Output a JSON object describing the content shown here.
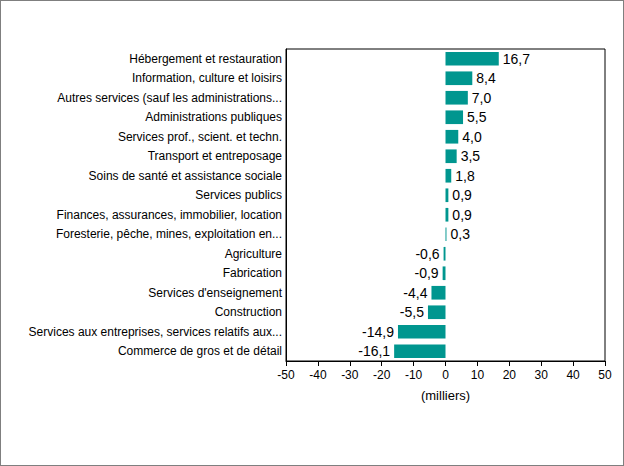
{
  "chart_data": {
    "type": "bar",
    "orientation": "horizontal",
    "x_label": "(milliers)",
    "categories": [
      "Hébergement et restauration",
      "Information, culture et loisirs",
      "Autres services (sauf les administrations...",
      "Administrations publiques",
      "Services prof., scient. et techn.",
      "Transport et entreposage",
      "Soins de santé et assistance sociale",
      "Services publics",
      "Finances, assurances, immobilier, location",
      "Foresterie, pêche, mines, exploitation en...",
      "Agriculture",
      "Fabrication",
      "Services d'enseignement",
      "Construction",
      "Services aux entreprises, services relatifs aux...",
      "Commerce de gros et de détail"
    ],
    "values": [
      16.7,
      8.4,
      7.0,
      5.5,
      4.0,
      3.5,
      1.8,
      0.9,
      0.9,
      0.3,
      -0.6,
      -0.9,
      -4.4,
      -5.5,
      -14.9,
      -16.1
    ],
    "value_labels": [
      "16,7",
      "8,4",
      "7,0",
      "5,5",
      "4,0",
      "3,5",
      "1,8",
      "0,9",
      "0,9",
      "0,3",
      "-0,6",
      "-0,9",
      "-4,4",
      "-5,5",
      "-14,9",
      "-16,1"
    ],
    "data_labels": true,
    "color": "#00968f",
    "xlim": [
      -50,
      50
    ],
    "xticks": [
      -50,
      -40,
      -30,
      -20,
      -10,
      0,
      10,
      20,
      30,
      40,
      50
    ],
    "grid": false
  }
}
